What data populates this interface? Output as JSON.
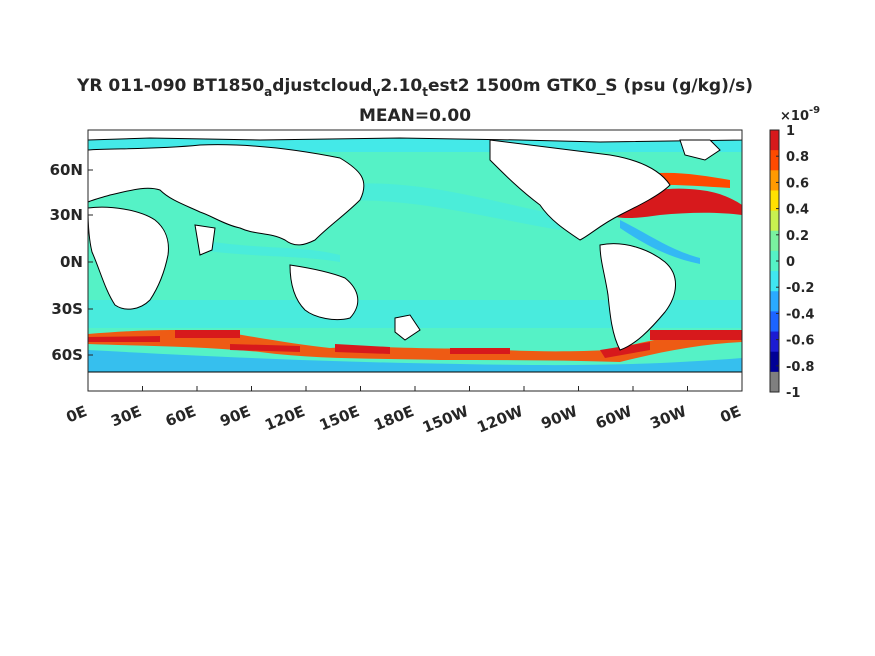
{
  "title": {
    "part1": "YR 011-090 BT1850",
    "sub1": "a",
    "part2": "djustcloud",
    "sub2": "v",
    "part3": "2.10",
    "sub3": "t",
    "part4": "est2 1500m GTK0_S (psu (g/kg)/s)",
    "line2": "MEAN=0.00"
  },
  "map": {
    "x_ticks": [
      "0E",
      "30E",
      "60E",
      "90E",
      "120E",
      "150E",
      "180E",
      "150W",
      "120W",
      "90W",
      "60W",
      "30W",
      "0E"
    ],
    "y_ticks": [
      "60N",
      "30N",
      "0N",
      "30S",
      "60S"
    ],
    "ocean_color": "#55f2c6",
    "land_color": "#ffffff",
    "coast_color": "#000000"
  },
  "colorbar": {
    "exponent_base": "×10",
    "exponent_power": "-9",
    "tick_labels": [
      "1",
      "0.8",
      "0.6",
      "0.4",
      "0.2",
      "0",
      "-0.2",
      "-0.4",
      "-0.6",
      "-0.8",
      "-1"
    ],
    "colors": [
      "#d7191c",
      "#ff4a00",
      "#ff9a00",
      "#ffe100",
      "#c8f050",
      "#7af0a0",
      "#55f2c6",
      "#40e6f0",
      "#2aaaff",
      "#1c64ff",
      "#1c1cd2",
      "#000096",
      "#7f7f7f"
    ]
  }
}
